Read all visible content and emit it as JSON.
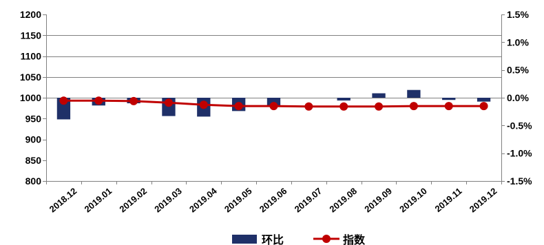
{
  "chart_data": {
    "type": "bar",
    "categories": [
      "2018.12",
      "2019.01",
      "2019.02",
      "2019.03",
      "2019.04",
      "2019.05",
      "2019.06",
      "2019.07",
      "2019.08",
      "2019.09",
      "2019.10",
      "2019.11",
      "2019.12"
    ],
    "series": [
      {
        "name": "环比",
        "type": "bar",
        "axis": "right",
        "color": "#1f3068",
        "values": [
          -0.39,
          -0.14,
          -0.1,
          -0.33,
          -0.34,
          -0.24,
          -0.16,
          0.0,
          -0.05,
          0.08,
          0.14,
          -0.04,
          -0.07
        ]
      },
      {
        "name": "指数",
        "type": "line",
        "axis": "left",
        "color": "#c00000",
        "values": [
          993,
          993,
          992,
          988,
          983,
          980,
          980,
          979,
          979,
          979,
          980,
          980,
          980
        ]
      }
    ],
    "y_left": {
      "ylim": [
        800,
        1200
      ],
      "ticks": [
        "800",
        "850",
        "900",
        "950",
        "1000",
        "1050",
        "1100",
        "1150",
        "1200"
      ]
    },
    "y_right": {
      "ylim": [
        -1.5,
        1.5
      ],
      "unit": "%",
      "ticks": [
        "-1.5%",
        "-1.0%",
        "-0.5%",
        "0.0%",
        "0.5%",
        "1.0%",
        "1.5%"
      ]
    },
    "grid": "horizontal lines at left ticks 1000, 1050, 1100 and 1150",
    "legend": {
      "position": "bottom",
      "items": [
        "环比",
        "指数"
      ]
    }
  }
}
